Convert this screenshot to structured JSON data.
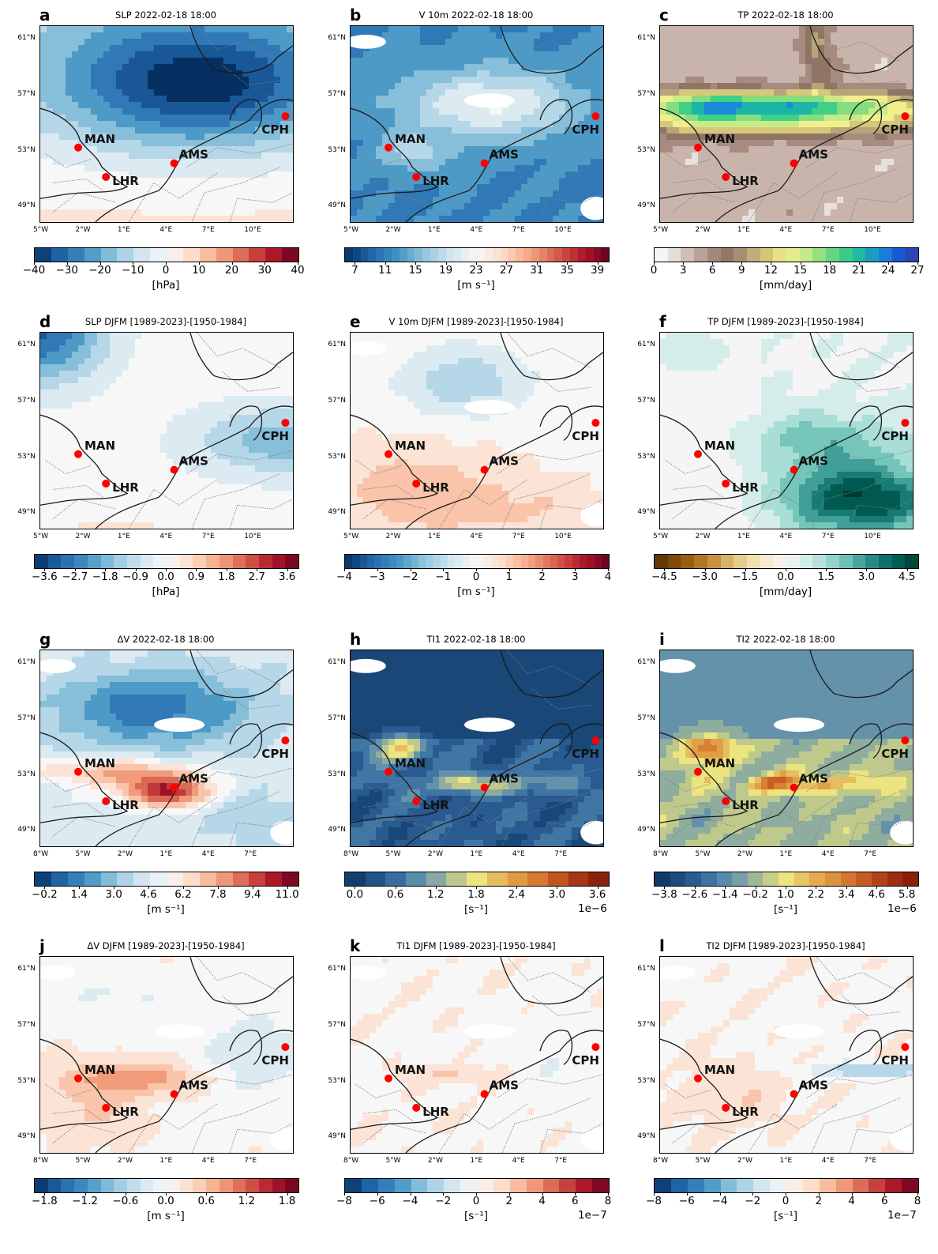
{
  "panels": [
    {
      "letter": "a",
      "title": "SLP 2022-02-18 18:00",
      "lon_ticks": [
        "5°W",
        "2°W",
        "1°E",
        "4°E",
        "7°E",
        "10°E"
      ],
      "lat_ticks": [
        "61°N",
        "57°N",
        "53°N",
        "49°N"
      ],
      "field": "slp_event",
      "palette": "RdBu_r",
      "cbar": {
        "ticks": [
          "−40",
          "−30",
          "−20",
          "−10",
          "0",
          "10",
          "20",
          "30",
          "40"
        ],
        "label": "[hPa]",
        "exponent": "",
        "palette": "RdBu_r",
        "nseg": 16
      }
    },
    {
      "letter": "b",
      "title": "V 10m 2022-02-18 18:00",
      "lon_ticks": [
        "5°W",
        "2°W",
        "1°E",
        "4°E",
        "7°E",
        "10°E"
      ],
      "lat_ticks": [
        "61°N",
        "57°N",
        "53°N",
        "49°N"
      ],
      "field": "wind_event",
      "palette": "RdBu_r",
      "cbar": {
        "ticks": [
          "7",
          "11",
          "15",
          "19",
          "23",
          "27",
          "31",
          "35",
          "39"
        ],
        "label": "[m s⁻¹]",
        "exponent": "",
        "palette": "RdBu_r",
        "nseg": 34
      }
    },
    {
      "letter": "c",
      "title": "TP 2022-02-18 18:00",
      "lon_ticks": [
        "5°W",
        "2°W",
        "1°E",
        "4°E",
        "7°E",
        "10°E"
      ],
      "lat_ticks": [
        "61°N",
        "57°N",
        "53°N",
        "49°N"
      ],
      "field": "tp_event",
      "palette": "precip",
      "cbar": {
        "ticks": [
          "0",
          "3",
          "6",
          "9",
          "12",
          "15",
          "18",
          "21",
          "24",
          "27"
        ],
        "label": "[mm/day]",
        "exponent": "",
        "palette": "precip",
        "nseg": 20
      }
    },
    {
      "letter": "d",
      "title": "SLP DJFM [1989-2023]-[1950-1984]",
      "lon_ticks": [
        "5°W",
        "2°W",
        "1°E",
        "4°E",
        "7°E",
        "10°E"
      ],
      "lat_ticks": [
        "61°N",
        "57°N",
        "53°N",
        "49°N"
      ],
      "field": "slp_diff",
      "palette": "RdBu_r",
      "cbar": {
        "ticks": [
          "−3.6",
          "−2.7",
          "−1.8",
          "−0.9",
          "0.0",
          "0.9",
          "1.8",
          "2.7",
          "3.6"
        ],
        "label": "[hPa]",
        "exponent": "",
        "palette": "RdBu_r",
        "nseg": 20
      }
    },
    {
      "letter": "e",
      "title": "V 10m DJFM [1989-2023]-[1950-1984]",
      "lon_ticks": [
        "5°W",
        "2°W",
        "1°E",
        "4°E",
        "7°E",
        "10°E"
      ],
      "lat_ticks": [
        "61°N",
        "57°N",
        "53°N",
        "49°N"
      ],
      "field": "wind_diff",
      "palette": "RdBu_r",
      "cbar": {
        "ticks": [
          "−4",
          "−3",
          "−2",
          "−1",
          "0",
          "1",
          "2",
          "3",
          "4"
        ],
        "label": "[m s⁻¹]",
        "exponent": "",
        "palette": "RdBu_r",
        "nseg": 36
      }
    },
    {
      "letter": "f",
      "title": "TP DJFM [1989-2023]-[1950-1984]",
      "lon_ticks": [
        "5°W",
        "2°W",
        "1°E",
        "4°E",
        "7°E",
        "10°E"
      ],
      "lat_ticks": [
        "61°N",
        "57°N",
        "53°N",
        "49°N"
      ],
      "field": "tp_diff",
      "palette": "BrBG",
      "cbar": {
        "ticks": [
          "−4.5",
          "−3.0",
          "−1.5",
          "0.0",
          "1.5",
          "3.0",
          "4.5"
        ],
        "label": "[mm/day]",
        "exponent": "",
        "palette": "BrBG",
        "nseg": 20
      }
    },
    {
      "letter": "g",
      "title": "ΔV 2022-02-18 18:00",
      "lon_ticks": [
        "8°W",
        "5°W",
        "2°W",
        "1°E",
        "4°E",
        "7°E"
      ],
      "lat_ticks": [
        "61°N",
        "57°N",
        "53°N",
        "49°N"
      ],
      "field": "dv_event",
      "palette": "RdBu_r",
      "cbar": {
        "ticks": [
          "−0.2",
          "1.4",
          "3.0",
          "4.6",
          "6.2",
          "7.8",
          "9.4",
          "11.0"
        ],
        "label": "[m s⁻¹]",
        "exponent": "",
        "palette": "RdBu_r",
        "nseg": 16
      }
    },
    {
      "letter": "h",
      "title": "TI1 2022-02-18 18:00",
      "lon_ticks": [
        "8°W",
        "5°W",
        "2°W",
        "1°E",
        "4°E",
        "7°E"
      ],
      "lat_ticks": [
        "61°N",
        "57°N",
        "53°N",
        "49°N"
      ],
      "field": "ti1_event",
      "palette": "ti",
      "cbar": {
        "ticks": [
          "0.0",
          "0.6",
          "1.2",
          "1.8",
          "2.4",
          "3.0",
          "3.6"
        ],
        "label": "[s⁻¹]",
        "exponent": "1e−6",
        "palette": "ti",
        "nseg": 13
      }
    },
    {
      "letter": "i",
      "title": "TI2 2022-02-18 18:00",
      "lon_ticks": [
        "8°W",
        "5°W",
        "2°W",
        "1°E",
        "4°E",
        "7°E"
      ],
      "lat_ticks": [
        "61°N",
        "57°N",
        "53°N",
        "49°N"
      ],
      "field": "ti2_event",
      "palette": "ti",
      "cbar": {
        "ticks": [
          "−3.8",
          "−2.6",
          "−1.4",
          "−0.2",
          "1.0",
          "2.2",
          "3.4",
          "4.6",
          "5.8"
        ],
        "label": "[s⁻¹]",
        "exponent": "1e−6",
        "palette": "ti",
        "nseg": 17
      }
    },
    {
      "letter": "j",
      "title": "ΔV DJFM [1989-2023]-[1950-1984]",
      "lon_ticks": [
        "8°W",
        "5°W",
        "2°W",
        "1°E",
        "4°E",
        "7°E"
      ],
      "lat_ticks": [
        "61°N",
        "57°N",
        "53°N",
        "49°N"
      ],
      "field": "dv_diff",
      "palette": "RdBu_r",
      "cbar": {
        "ticks": [
          "−1.8",
          "−1.2",
          "−0.6",
          "0.0",
          "0.6",
          "1.2",
          "1.8"
        ],
        "label": "[m s⁻¹]",
        "exponent": "",
        "palette": "RdBu_r",
        "nseg": 20
      }
    },
    {
      "letter": "k",
      "title": "TI1 DJFM [1989-2023]-[1950-1984]",
      "lon_ticks": [
        "8°W",
        "5°W",
        "2°W",
        "1°E",
        "4°E",
        "7°E"
      ],
      "lat_ticks": [
        "61°N",
        "57°N",
        "53°N",
        "49°N"
      ],
      "field": "ti1_diff",
      "palette": "RdBu_r",
      "cbar": {
        "ticks": [
          "−8",
          "−6",
          "−4",
          "−2",
          "0",
          "2",
          "4",
          "6",
          "8"
        ],
        "label": "[s⁻¹]",
        "exponent": "1e−7",
        "palette": "RdBu_r",
        "nseg": 16
      }
    },
    {
      "letter": "l",
      "title": "TI2 DJFM [1989-2023]-[1950-1984]",
      "lon_ticks": [
        "8°W",
        "5°W",
        "2°W",
        "1°E",
        "4°E",
        "7°E"
      ],
      "lat_ticks": [
        "61°N",
        "57°N",
        "53°N",
        "49°N"
      ],
      "field": "ti2_diff",
      "palette": "RdBu_r",
      "cbar": {
        "ticks": [
          "−8",
          "−6",
          "−4",
          "−2",
          "0",
          "2",
          "4",
          "6",
          "8"
        ],
        "label": "[s⁻¹]",
        "exponent": "1e−7",
        "palette": "RdBu_r",
        "nseg": 16
      }
    }
  ],
  "cities": [
    "MAN",
    "LHR",
    "AMS",
    "CPH"
  ],
  "colors": {
    "city_marker": "#ff0000",
    "coastline": "#1a1a1a",
    "borders": "#808080"
  }
}
